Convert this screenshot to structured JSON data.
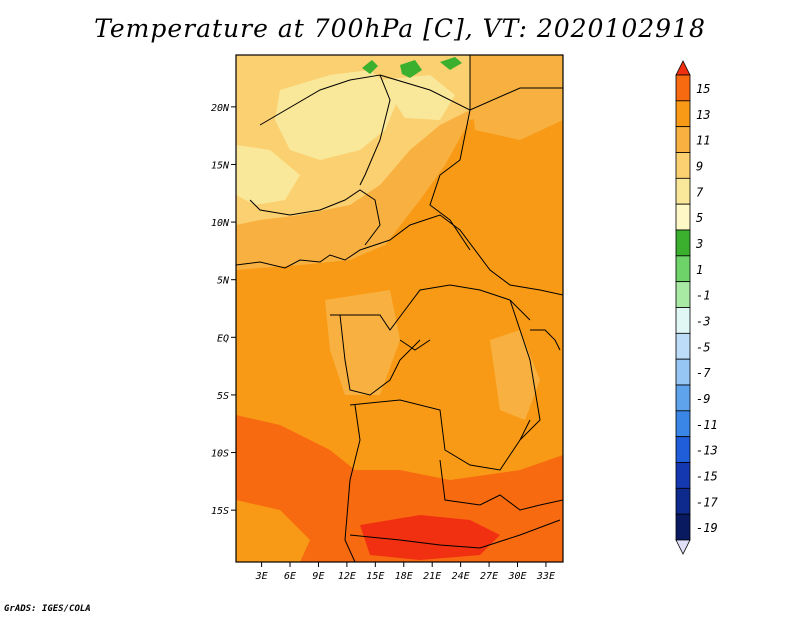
{
  "title": "Temperature at 700hPa [C], VT: 2020102918",
  "credit": "GrADS: IGES/COLA",
  "map": {
    "lat_labels": [
      "20N",
      "15N",
      "10N",
      "5N",
      "EQ",
      "5S",
      "10S",
      "15S"
    ],
    "lat_values": [
      20,
      15,
      10,
      5,
      0,
      -5,
      -10,
      -15
    ],
    "lon_labels": [
      "3E",
      "6E",
      "9E",
      "12E",
      "15E",
      "18E",
      "21E",
      "24E",
      "27E",
      "30E",
      "33E"
    ],
    "lon_values": [
      3,
      6,
      9,
      12,
      15,
      18,
      21,
      24,
      27,
      30,
      33
    ],
    "lat_range": [
      -19.5,
      24.5
    ],
    "lon_range": [
      0.3,
      34.8
    ]
  },
  "colorbar": {
    "labels": [
      "15",
      "13",
      "11",
      "9",
      "7",
      "5",
      "3",
      "1",
      "-1",
      "-3",
      "-5",
      "-7",
      "-9",
      "-11",
      "-13",
      "-15",
      "-17",
      "-19"
    ],
    "colors": [
      "#f03010",
      "#f86a10",
      "#f89a16",
      "#f8b140",
      "#fad070",
      "#fae89a",
      "#fdf8c6",
      "#3ab02e",
      "#6ed46a",
      "#a8eaa4",
      "#e0f7f6",
      "#bcdcf8",
      "#96c7f4",
      "#5fa3ed",
      "#3a86e6",
      "#1f5ed8",
      "#1438b0",
      "#0e2a8c",
      "#0a1a60",
      "#e0e0f8"
    ]
  },
  "colors": {
    "deep_red": "#f03010",
    "orange_red": "#f86a10",
    "orange": "#f89a16",
    "light_orange": "#f8b140",
    "pale_orange": "#fad070",
    "cream": "#fae89a",
    "green": "#3ab02e"
  }
}
